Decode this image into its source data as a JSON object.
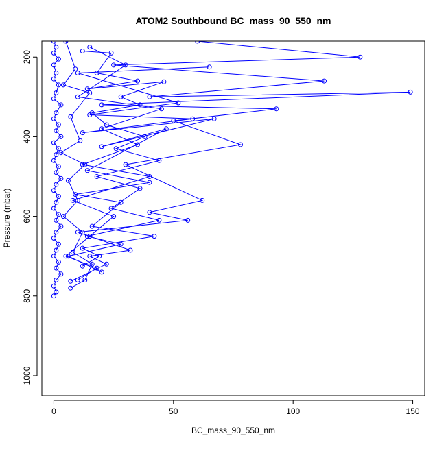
{
  "chart_data": {
    "type": "line",
    "title": "ATOM2 Southbound BC_mass_90_550_nm",
    "xlabel": "BC_mass_90_550_nm",
    "ylabel": "Pressure (mbar)",
    "xlim": [
      -5,
      155
    ],
    "ylim": [
      1050,
      160
    ],
    "y_axis_inverted": true,
    "x_ticks": [
      0,
      50,
      100,
      150
    ],
    "y_ticks": [
      200,
      400,
      600,
      800,
      1000
    ],
    "color": "#0000ff",
    "grid": false,
    "legend": "none",
    "marker": "open-circle",
    "series": [
      {
        "points": [
          [
            0,
            160
          ],
          [
            1,
            175
          ],
          [
            0,
            190
          ],
          [
            2,
            205
          ],
          [
            0,
            220
          ],
          [
            1,
            240
          ],
          [
            0,
            255
          ],
          [
            2,
            270
          ],
          [
            1,
            290
          ],
          [
            0,
            305
          ],
          [
            3,
            320
          ],
          [
            1,
            340
          ],
          [
            0,
            355
          ],
          [
            2,
            370
          ],
          [
            1,
            385
          ],
          [
            3,
            400
          ],
          [
            0,
            415
          ],
          [
            2,
            430
          ],
          [
            1,
            445
          ],
          [
            0,
            460
          ],
          [
            2,
            475
          ],
          [
            1,
            490
          ],
          [
            3,
            505
          ],
          [
            1,
            520
          ],
          [
            0,
            535
          ],
          [
            2,
            550
          ],
          [
            1,
            565
          ],
          [
            0,
            580
          ],
          [
            2,
            595
          ],
          [
            1,
            610
          ],
          [
            3,
            625
          ],
          [
            1,
            640
          ],
          [
            0,
            655
          ],
          [
            2,
            670
          ],
          [
            1,
            685
          ],
          [
            0,
            700
          ],
          [
            2,
            715
          ],
          [
            1,
            730
          ],
          [
            3,
            745
          ],
          [
            1,
            760
          ],
          [
            0,
            775
          ],
          [
            1,
            790
          ],
          [
            0,
            800
          ]
        ]
      },
      {
        "points": [
          [
            15,
            175
          ],
          [
            30,
            220
          ],
          [
            10,
            300
          ],
          [
            45,
            330
          ],
          [
            20,
            380
          ],
          [
            35,
            420
          ],
          [
            12,
            470
          ],
          [
            40,
            500
          ],
          [
            8,
            560
          ],
          [
            25,
            600
          ],
          [
            15,
            650
          ],
          [
            5,
            700
          ],
          [
            18,
            730
          ],
          [
            10,
            760
          ]
        ]
      },
      {
        "points": [
          [
            60,
            160
          ],
          [
            128,
            200
          ],
          [
            25,
            220
          ],
          [
            113,
            260
          ],
          [
            40,
            300
          ],
          [
            149,
            288
          ],
          [
            20,
            320
          ],
          [
            93,
            330
          ],
          [
            50,
            360
          ],
          [
            78,
            420
          ],
          [
            30,
            470
          ],
          [
            62,
            560
          ],
          [
            40,
            590
          ],
          [
            56,
            610
          ],
          [
            10,
            640
          ],
          [
            32,
            685
          ],
          [
            15,
            700
          ],
          [
            22,
            720
          ],
          [
            7,
            763
          ]
        ]
      },
      {
        "points": [
          [
            12,
            185
          ],
          [
            24,
            190
          ],
          [
            18,
            240
          ],
          [
            35,
            260
          ],
          [
            14,
            280
          ],
          [
            46,
            262
          ],
          [
            28,
            300
          ],
          [
            36,
            320
          ],
          [
            16,
            340
          ],
          [
            22,
            370
          ],
          [
            38,
            400
          ],
          [
            26,
            430
          ],
          [
            44,
            460
          ],
          [
            18,
            500
          ],
          [
            36,
            530
          ],
          [
            24,
            580
          ],
          [
            44,
            610
          ],
          [
            14,
            650
          ],
          [
            28,
            670
          ],
          [
            6,
            700
          ],
          [
            20,
            740
          ]
        ]
      },
      {
        "points": [
          [
            5,
            160
          ],
          [
            9,
            230
          ],
          [
            4,
            270
          ],
          [
            15,
            290
          ],
          [
            7,
            350
          ],
          [
            11,
            410
          ],
          [
            3,
            440
          ],
          [
            13,
            470
          ],
          [
            6,
            510
          ],
          [
            10,
            560
          ],
          [
            4,
            600
          ],
          [
            12,
            640
          ],
          [
            8,
            690
          ],
          [
            16,
            720
          ],
          [
            13,
            760
          ],
          [
            7,
            780
          ]
        ]
      },
      {
        "points": [
          [
            65,
            225
          ],
          [
            10,
            240
          ],
          [
            52,
            315
          ],
          [
            15,
            345
          ],
          [
            58,
            355
          ],
          [
            12,
            390
          ],
          [
            67,
            355
          ],
          [
            20,
            425
          ],
          [
            47,
            380
          ],
          [
            14,
            485
          ],
          [
            40,
            515
          ],
          [
            9,
            545
          ],
          [
            28,
            565
          ],
          [
            16,
            625
          ],
          [
            42,
            650
          ],
          [
            12,
            680
          ],
          [
            19,
            700
          ],
          [
            12,
            725
          ]
        ]
      }
    ]
  }
}
